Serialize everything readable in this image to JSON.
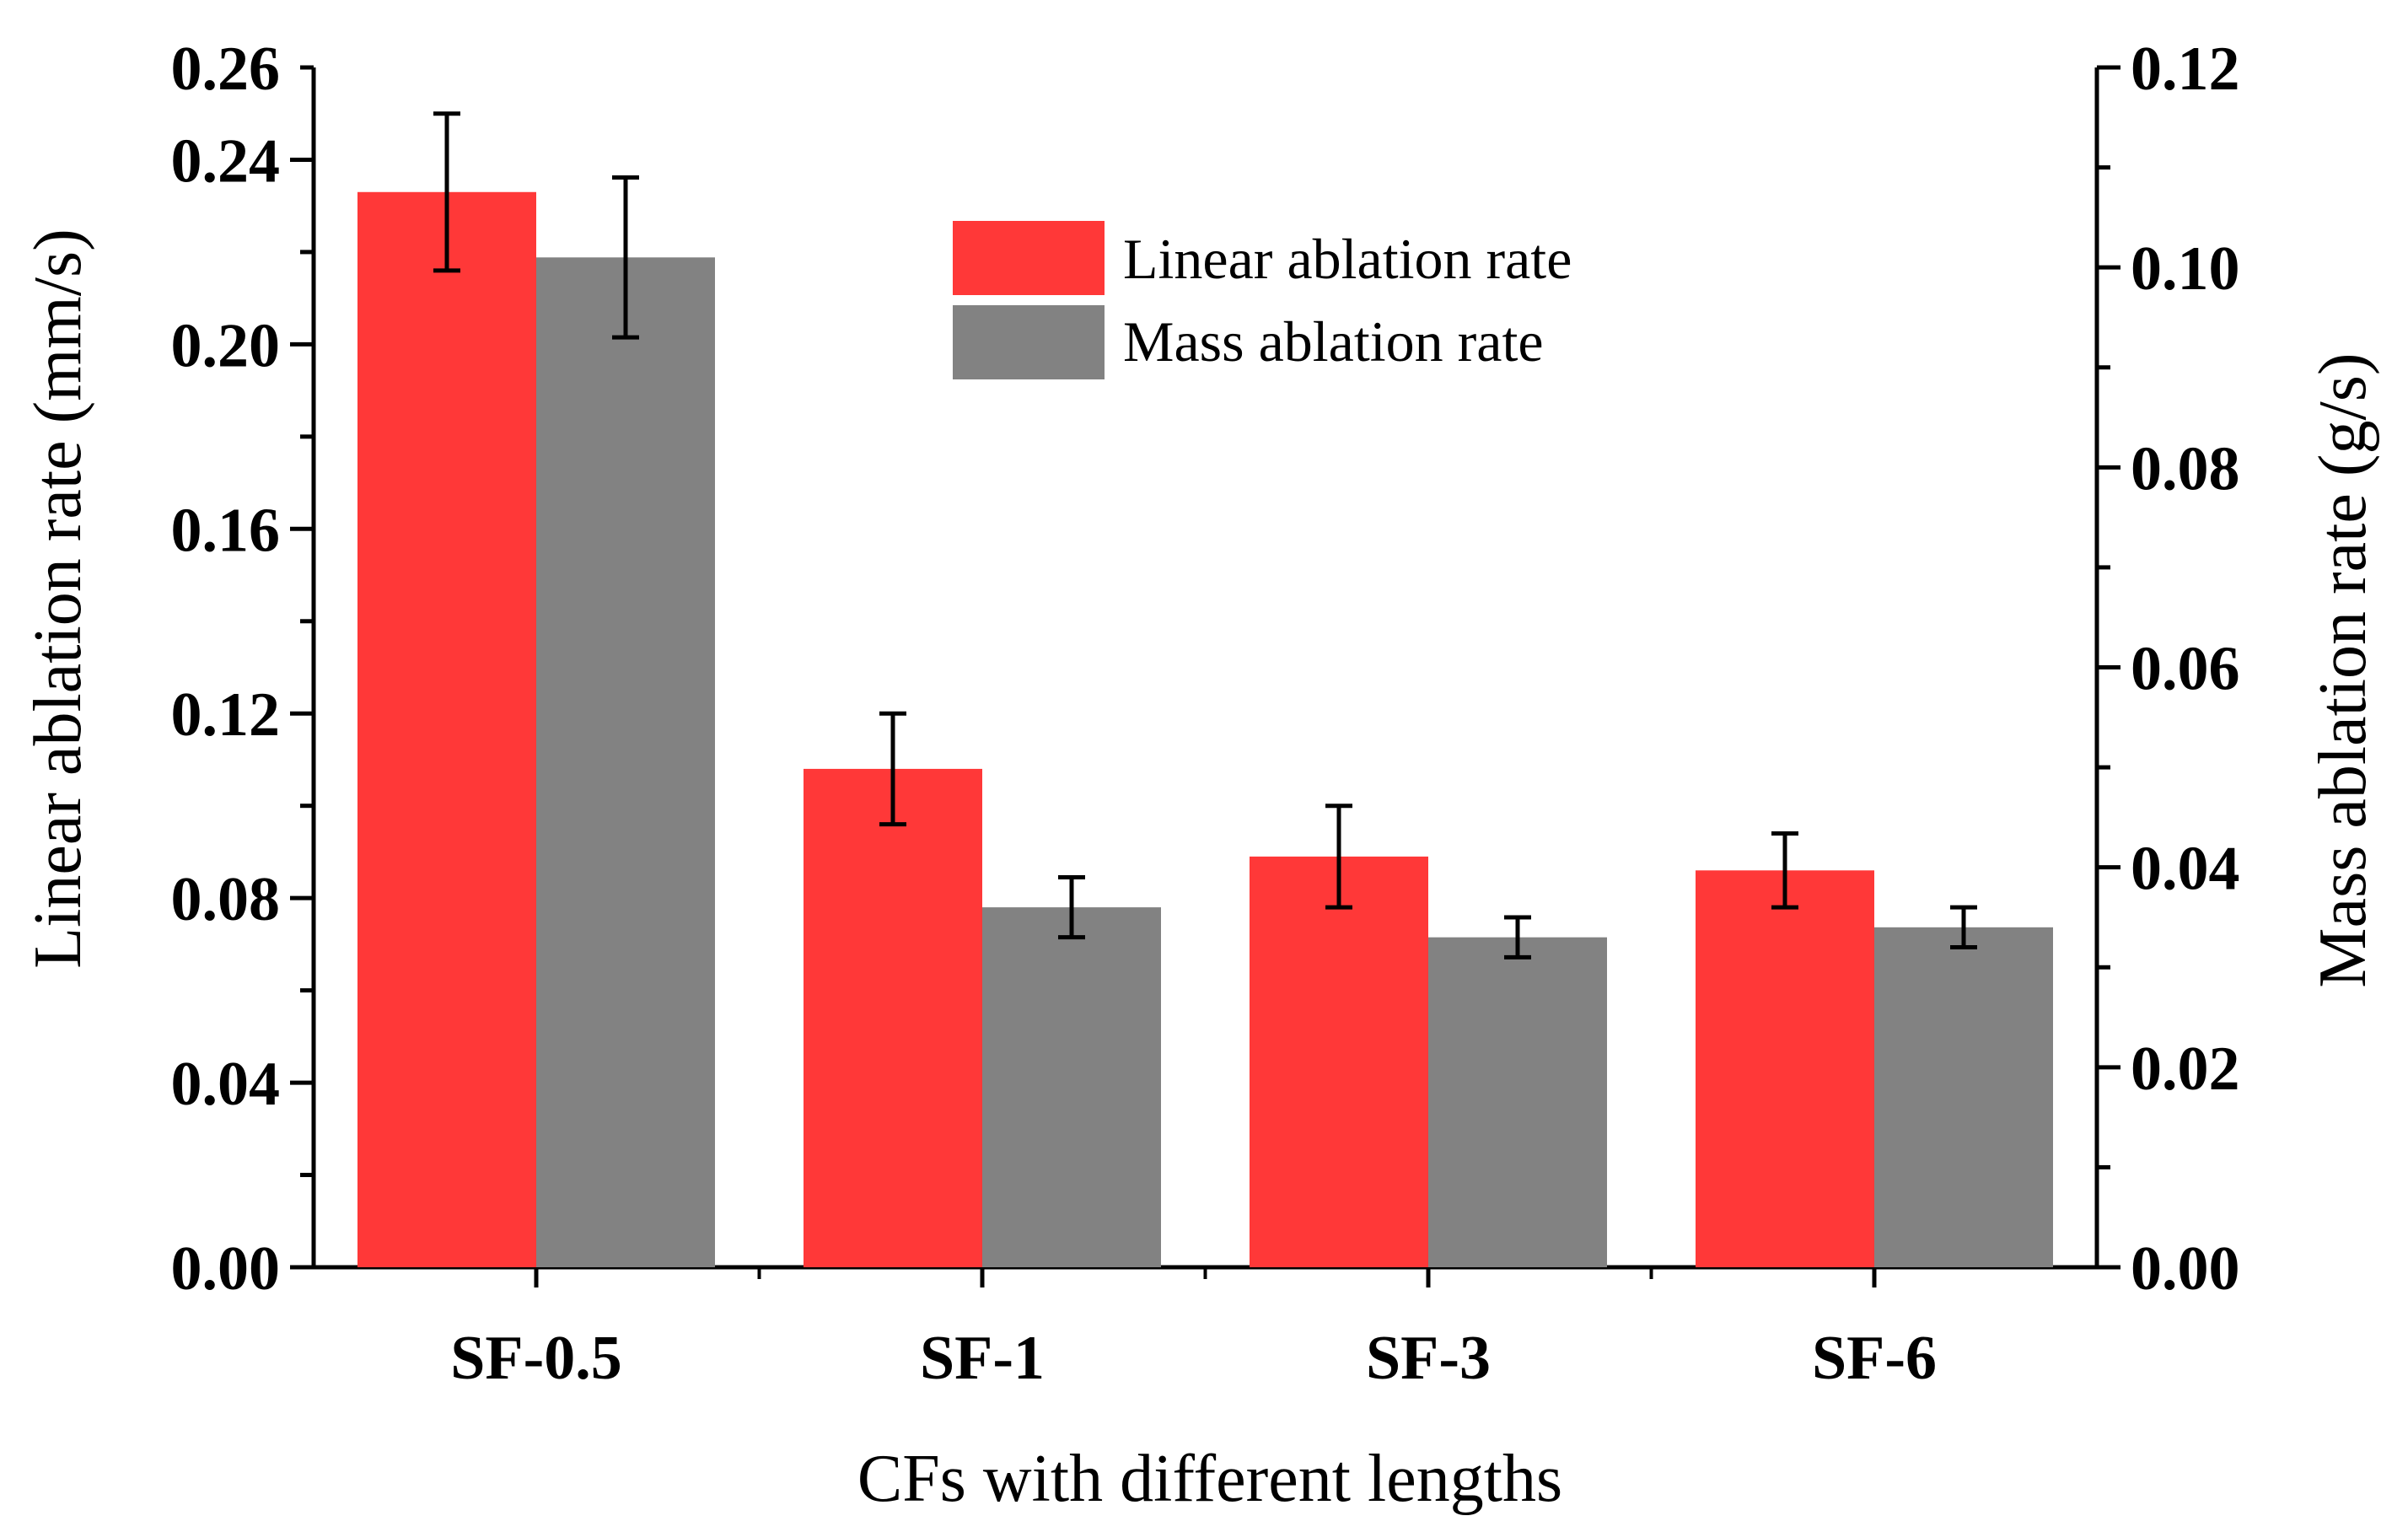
{
  "chart_data": {
    "type": "bar",
    "categories": [
      "SF-0.5",
      "SF-1",
      "SF-3",
      "SF-6"
    ],
    "series": [
      {
        "name": "Linear ablation rate",
        "axis": "left",
        "color": "#ff3838",
        "values": [
          0.233,
          0.108,
          0.089,
          0.086
        ],
        "errors": [
          0.017,
          0.012,
          0.011,
          0.008
        ]
      },
      {
        "name": "Mass ablation rate",
        "axis": "right",
        "color": "#828282",
        "values": [
          0.101,
          0.036,
          0.033,
          0.034
        ],
        "errors": [
          0.008,
          0.003,
          0.002,
          0.002
        ]
      }
    ],
    "xlabel": "CFs with different lengths",
    "ylabel_left": "Linear ablation rate (mm/s)",
    "ylabel_right": "Mass ablation rate (g/s)",
    "ylim_left": [
      0,
      0.26
    ],
    "ylim_right": [
      0,
      0.12
    ],
    "yticks_left": [
      "0.00",
      "0.04",
      "0.08",
      "0.12",
      "0.16",
      "0.20",
      "0.24",
      "0.26"
    ],
    "yticks_right": [
      "0.00",
      "0.02",
      "0.04",
      "0.06",
      "0.08",
      "0.10",
      "0.12"
    ],
    "legend_position": "top-center",
    "grid": false
  }
}
